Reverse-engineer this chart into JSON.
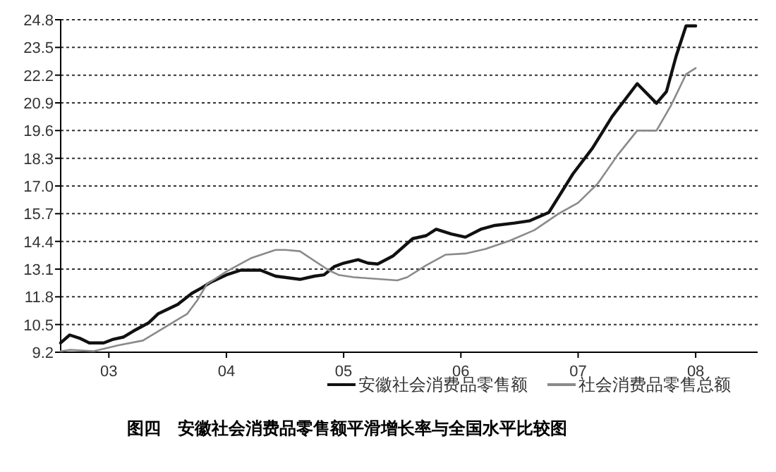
{
  "chart_data": {
    "type": "line",
    "title": "图四　安徽社会消费品零售额平滑增长率与全国水平比较图",
    "xlim": [
      "2003-02-01",
      "2009-01-10"
    ],
    "ylim": [
      9.2,
      24.8
    ],
    "xticks": [
      {
        "value": "2003-07-01",
        "label": "03"
      },
      {
        "value": "2004-07-01",
        "label": "04"
      },
      {
        "value": "2005-07-01",
        "label": "05"
      },
      {
        "value": "2006-07-01",
        "label": "06"
      },
      {
        "value": "2007-07-01",
        "label": "07"
      },
      {
        "value": "2008-07-01",
        "label": "08"
      }
    ],
    "yticks": [
      9.2,
      10.5,
      11.8,
      13.1,
      14.4,
      15.7,
      {
        "value": 17.0,
        "label": "17.0"
      },
      18.3,
      19.6,
      20.9,
      22.2,
      23.5,
      24.8
    ],
    "grid": "y",
    "legend": "bottom",
    "line_style": "solid",
    "marker": "none",
    "series": [
      {
        "name": "安徽社会消费品零售额",
        "color": "#111111",
        "x": [
          "2003-02-01",
          "2003-03-01",
          "2003-04-01",
          "2003-05-01",
          "2003-06-15",
          "2003-07-15",
          "2003-08-15",
          "2003-09-15",
          "2003-11-01",
          "2003-12-01",
          "2004-02-01",
          "2004-03-15",
          "2004-04-15",
          "2004-05-15",
          "2004-07-01",
          "2004-08-15",
          "2004-10-15",
          "2004-12-01",
          "2005-02-15",
          "2005-04-01",
          "2005-05-01",
          "2005-06-01",
          "2005-07-01",
          "2005-08-15",
          "2005-09-15",
          "2005-10-15",
          "2005-12-01",
          "2006-02-01",
          "2006-03-15",
          "2006-04-15",
          "2006-06-01",
          "2006-07-15",
          "2006-09-01",
          "2006-10-15",
          "2006-12-15",
          "2007-02-01",
          "2007-04-01",
          "2007-06-15",
          "2007-08-15",
          "2007-10-15",
          "2008-01-01",
          "2008-03-01",
          "2008-04-01",
          "2008-05-01",
          "2008-06-01",
          "2008-07-01"
        ],
        "values": [
          9.64,
          10.01,
          9.86,
          9.64,
          9.64,
          9.81,
          9.91,
          10.19,
          10.57,
          11.0,
          11.45,
          11.96,
          12.22,
          12.5,
          12.83,
          13.05,
          13.05,
          12.77,
          12.62,
          12.77,
          12.83,
          13.21,
          13.38,
          13.54,
          13.38,
          13.34,
          13.71,
          14.53,
          14.67,
          14.97,
          14.75,
          14.6,
          14.97,
          15.15,
          15.26,
          15.37,
          15.76,
          17.57,
          18.78,
          20.26,
          21.8,
          20.88,
          21.43,
          23.08,
          24.51,
          24.51
        ]
      },
      {
        "name": "社会消费品零售总额",
        "color": "#8a8a8a",
        "x": [
          "2003-02-01",
          "2003-03-01",
          "2003-05-15",
          "2003-08-01",
          "2003-10-15",
          "2003-12-15",
          "2004-02-01",
          "2004-03-01",
          "2004-04-01",
          "2004-05-01",
          "2004-07-01",
          "2004-09-15",
          "2004-12-01",
          "2005-01-01",
          "2005-02-15",
          "2005-05-15",
          "2005-06-15",
          "2005-08-01",
          "2005-12-15",
          "2006-01-15",
          "2006-03-15",
          "2006-05-15",
          "2006-07-15",
          "2006-09-15",
          "2006-12-01",
          "2007-02-15",
          "2007-05-01",
          "2007-07-01",
          "2007-09-01",
          "2007-11-01",
          "2008-01-01",
          "2008-03-01",
          "2008-04-15",
          "2008-06-01",
          "2008-07-01"
        ],
        "values": [
          9.25,
          9.31,
          9.25,
          9.53,
          9.75,
          10.3,
          10.74,
          11.0,
          11.63,
          12.39,
          12.99,
          13.61,
          14.0,
          14.0,
          13.94,
          13.05,
          12.83,
          12.72,
          12.57,
          12.72,
          13.28,
          13.78,
          13.83,
          14.04,
          14.44,
          14.93,
          15.7,
          16.21,
          17.13,
          18.45,
          19.6,
          19.6,
          20.77,
          22.24,
          22.53
        ]
      }
    ]
  }
}
